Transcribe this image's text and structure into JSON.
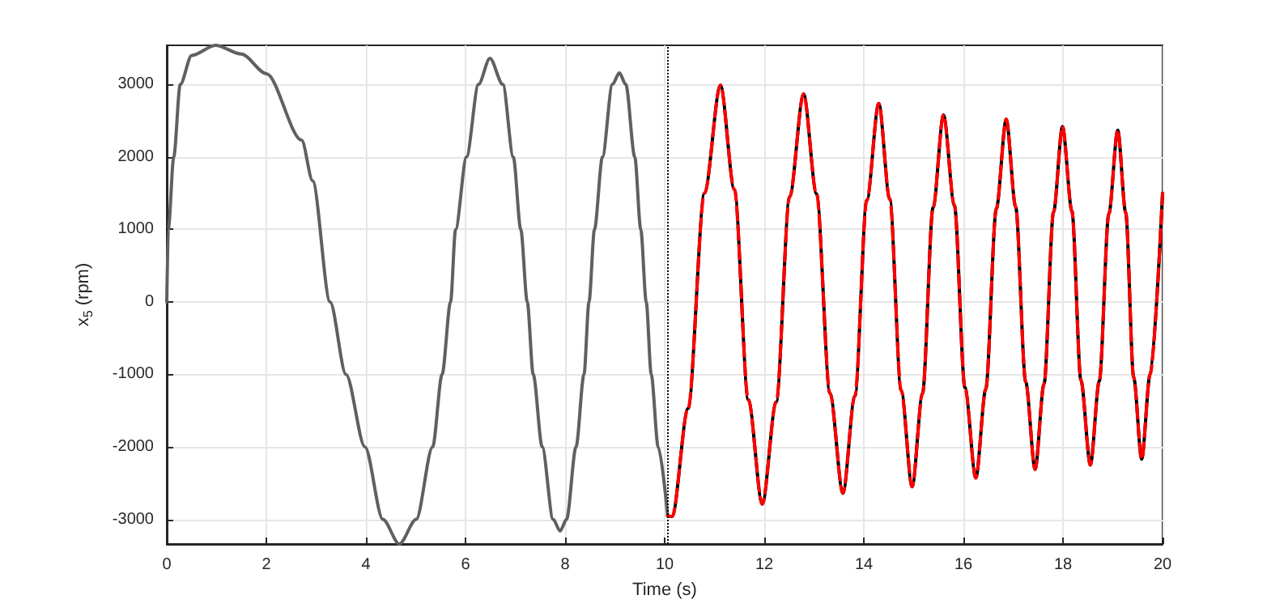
{
  "chart_data": {
    "type": "line",
    "xlabel": "Time (s)",
    "ylabel": "x$_{5}$ (rpm)",
    "xlim": [
      0,
      20
    ],
    "xticks": [
      0,
      2,
      4,
      6,
      8,
      10,
      12,
      14,
      16,
      18,
      20
    ],
    "ylim": [
      -3340,
      3540
    ],
    "yticks": [
      -3000,
      -2000,
      -1000,
      0,
      1000,
      2000,
      3000
    ],
    "grid": true,
    "marker": "none",
    "ref_lines": [
      {
        "axis": "x",
        "value": 10.06,
        "color": "#000000",
        "line_style": "dotted"
      }
    ],
    "series": [
      {
        "color": "#606060",
        "line_style": "solid",
        "x": [
          0,
          0.03,
          0.14,
          0.27,
          0.5,
          0.98,
          1.5,
          2.0,
          2.71,
          2.93,
          3.28,
          3.6,
          3.98,
          4.34,
          4.67,
          5.01,
          5.34,
          5.53,
          5.7,
          5.8,
          6.02,
          6.26,
          6.49,
          6.75,
          6.96,
          7.11,
          7.24,
          7.36,
          7.54,
          7.76,
          7.9,
          8.03,
          8.22,
          8.38,
          8.48,
          8.59,
          8.75,
          8.95,
          9.09,
          9.22,
          9.4,
          9.52,
          9.63,
          9.73,
          9.87,
          10.06
        ],
        "values": [
          0,
          1000,
          2000,
          3000,
          3400,
          3540,
          3420,
          3150,
          2230,
          1670,
          0,
          -1000,
          -2000,
          -3000,
          -3340,
          -3000,
          -2000,
          -1000,
          0,
          1000,
          2000,
          3000,
          3360,
          3000,
          2000,
          1000,
          0,
          -1000,
          -2000,
          -3000,
          -3160,
          -3000,
          -2000,
          -1000,
          0,
          1000,
          2000,
          3000,
          3160,
          3000,
          2000,
          1000,
          0,
          -1000,
          -2000,
          -2950
        ]
      },
      {
        "color": "#000000",
        "line_style": "solid",
        "x": [
          10.06,
          10.15,
          10.47,
          10.8,
          11.12,
          11.4,
          11.68,
          11.96,
          12.24,
          12.51,
          12.79,
          13.05,
          13.32,
          13.58,
          13.82,
          14.06,
          14.3,
          14.52,
          14.75,
          14.97,
          15.18,
          15.39,
          15.6,
          15.82,
          16.03,
          16.25,
          16.45,
          16.66,
          16.86,
          17.05,
          17.25,
          17.44,
          17.62,
          17.81,
          17.99,
          18.18,
          18.36,
          18.55,
          18.73,
          18.92,
          19.1,
          19.26,
          19.42,
          19.58,
          19.75,
          20
        ],
        "values": [
          -2950,
          -2960,
          -1470,
          1500,
          2990,
          1550,
          -1350,
          -2790,
          -1380,
          1450,
          2870,
          1490,
          -1260,
          -2640,
          -1300,
          1400,
          2740,
          1420,
          -1220,
          -2550,
          -1260,
          1300,
          2580,
          1330,
          -1180,
          -2430,
          -1200,
          1280,
          2520,
          1310,
          -1100,
          -2310,
          -1130,
          1240,
          2420,
          1250,
          -1080,
          -2250,
          -1090,
          1210,
          2370,
          1230,
          -1040,
          -2170,
          -1000,
          1500
        ]
      },
      {
        "color": "#ff0000",
        "line_style": "dashed",
        "x": [
          10.06,
          10.15,
          10.47,
          10.8,
          11.12,
          11.4,
          11.68,
          11.96,
          12.24,
          12.51,
          12.79,
          13.05,
          13.32,
          13.58,
          13.82,
          14.06,
          14.3,
          14.52,
          14.75,
          14.97,
          15.18,
          15.39,
          15.6,
          15.82,
          16.03,
          16.25,
          16.45,
          16.66,
          16.86,
          17.05,
          17.25,
          17.44,
          17.62,
          17.81,
          17.99,
          18.18,
          18.36,
          18.55,
          18.73,
          18.92,
          19.1,
          19.26,
          19.42,
          19.58,
          19.75,
          20
        ],
        "values": [
          -2950,
          -2960,
          -1470,
          1500,
          2990,
          1550,
          -1350,
          -2790,
          -1380,
          1450,
          2870,
          1490,
          -1260,
          -2640,
          -1300,
          1400,
          2740,
          1420,
          -1220,
          -2550,
          -1260,
          1300,
          2580,
          1330,
          -1180,
          -2430,
          -1200,
          1280,
          2520,
          1310,
          -1100,
          -2310,
          -1130,
          1240,
          2420,
          1250,
          -1080,
          -2250,
          -1090,
          1210,
          2370,
          1230,
          -1040,
          -2170,
          -1000,
          1500
        ]
      }
    ]
  }
}
